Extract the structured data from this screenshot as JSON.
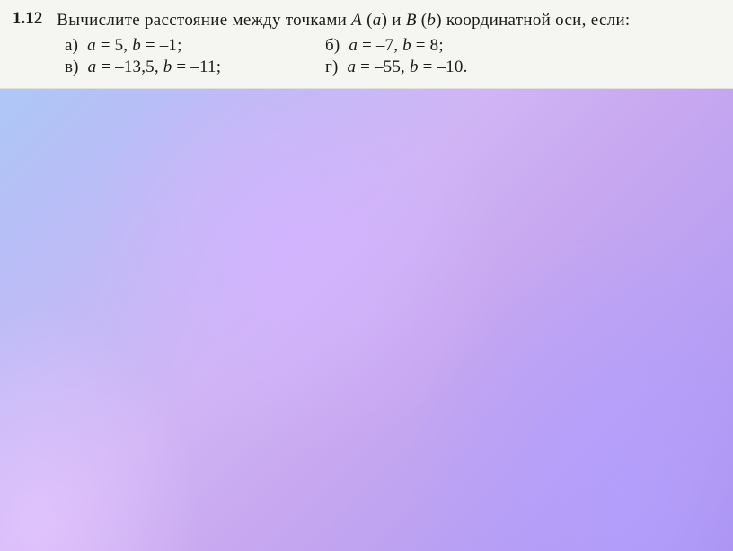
{
  "problem": {
    "number": "1.12",
    "statement_part1": "Вычислите расстояние между точками ",
    "point_A": "A",
    "paren_a": "(a)",
    "and": " и ",
    "point_B": "B",
    "paren_b": "(b)",
    "statement_part2": " координатной оси, если:",
    "parts": {
      "a": {
        "label": "а)",
        "var1": "a",
        "eq1": " = 5, ",
        "var2": "b",
        "eq2": " = –1;"
      },
      "b": {
        "label": "б)",
        "var1": "a",
        "eq1": " = –7, ",
        "var2": "b",
        "eq2": " = 8;"
      },
      "v": {
        "label": "в)",
        "var1": "a",
        "eq1": " = –13,5, ",
        "var2": "b",
        "eq2": " = –11;"
      },
      "g": {
        "label": "г)",
        "var1": "a",
        "eq1": " = –55, ",
        "var2": "b",
        "eq2": " = –10."
      }
    }
  },
  "colors": {
    "text": "#1a1a1a",
    "box_bg": "#f5f5f2",
    "gradient_start": "#a8cdf5",
    "gradient_end": "#a890ed",
    "radial1": "#d0b5f5",
    "radial2": "#b89ff2"
  },
  "typography": {
    "font_family": "Georgia, Times New Roman, serif",
    "number_fontsize": 19,
    "number_weight": "bold",
    "body_fontsize": 19
  }
}
